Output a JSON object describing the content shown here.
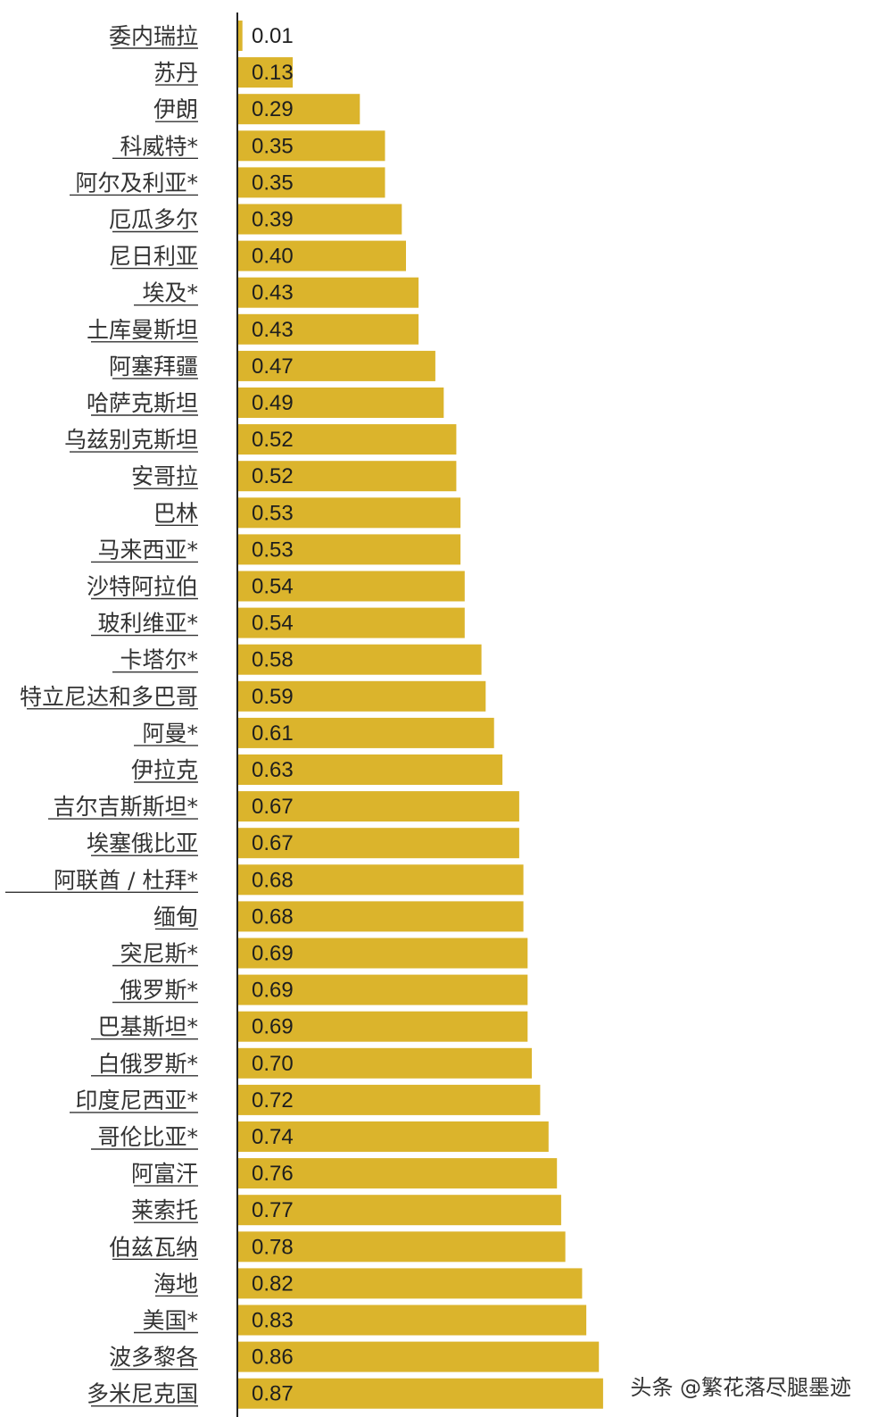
{
  "chart_data": {
    "type": "bar",
    "orientation": "horizontal",
    "title": "",
    "xlabel": "",
    "ylabel": "",
    "categories": [
      "委内瑞拉",
      "苏丹",
      "伊朗",
      "科威特*",
      "阿尔及利亚*",
      "厄瓜多尔",
      "尼日利亚",
      "埃及*",
      "土库曼斯坦",
      "阿塞拜疆",
      "哈萨克斯坦",
      "乌兹别克斯坦",
      "安哥拉",
      "巴林",
      "马来西亚*",
      "沙特阿拉伯",
      "玻利维亚*",
      "卡塔尔*",
      "特立尼达和多巴哥",
      "阿曼*",
      "伊拉克",
      "吉尔吉斯斯坦*",
      "埃塞俄比亚",
      "阿联酋 / 杜拜*",
      "缅甸",
      "突尼斯*",
      "俄罗斯*",
      "巴基斯坦*",
      "白俄罗斯*",
      "印度尼西亚*",
      "哥伦比亚*",
      "阿富汗",
      "莱索托",
      "伯兹瓦纳",
      "海地",
      "美国*",
      "波多黎各",
      "多米尼克国"
    ],
    "values": [
      0.01,
      0.13,
      0.29,
      0.35,
      0.35,
      0.39,
      0.4,
      0.43,
      0.43,
      0.47,
      0.49,
      0.52,
      0.52,
      0.53,
      0.53,
      0.54,
      0.54,
      0.58,
      0.59,
      0.61,
      0.63,
      0.67,
      0.67,
      0.68,
      0.68,
      0.69,
      0.69,
      0.69,
      0.7,
      0.72,
      0.74,
      0.76,
      0.77,
      0.78,
      0.82,
      0.83,
      0.86,
      0.87
    ],
    "value_labels": [
      "0.01",
      "0.13",
      "0.29",
      "0.35",
      "0.35",
      "0.39",
      "0.40",
      "0.43",
      "0.43",
      "0.47",
      "0.49",
      "0.52",
      "0.52",
      "0.53",
      "0.53",
      "0.54",
      "0.54",
      "0.58",
      "0.59",
      "0.61",
      "0.63",
      "0.67",
      "0.67",
      "0.68",
      "0.68",
      "0.69",
      "0.69",
      "0.69",
      "0.70",
      "0.72",
      "0.74",
      "0.76",
      "0.77",
      "0.78",
      "0.82",
      "0.83",
      "0.86",
      "0.87"
    ],
    "xlim": [
      0,
      1.0
    ],
    "grid": false,
    "legend": "none",
    "bar_color": "#dbb42c",
    "axis_color": "#222222",
    "label_underlined": true
  },
  "watermark": {
    "text": "头条 @繁花落尽腿墨迹"
  }
}
